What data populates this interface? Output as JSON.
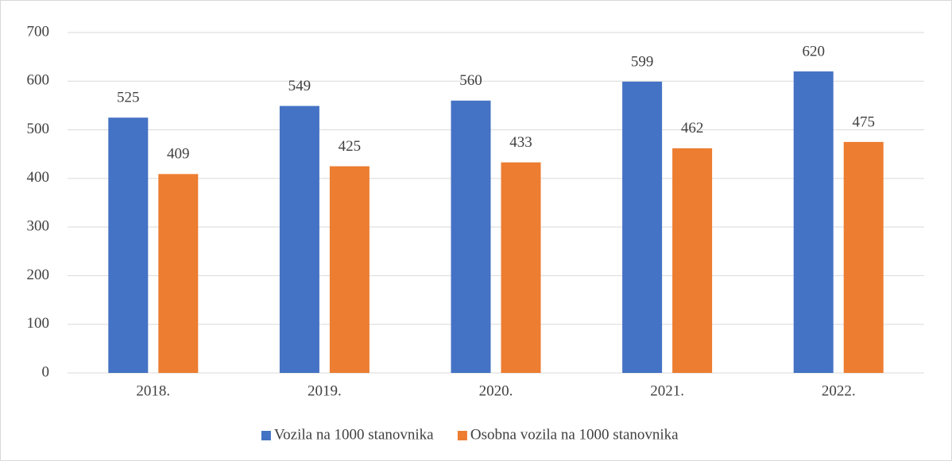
{
  "chart_data": {
    "type": "bar",
    "categories": [
      "2018.",
      "2019.",
      "2020.",
      "2021.",
      "2022."
    ],
    "series": [
      {
        "name": "Vozila na 1000 stanovnika",
        "color": "#4472c4",
        "values": [
          525,
          549,
          560,
          599,
          620
        ]
      },
      {
        "name": "Osobna vozila na 1000 stanovnika",
        "color": "#ed7d31",
        "values": [
          409,
          425,
          433,
          462,
          475
        ]
      }
    ],
    "ylim": [
      0,
      700
    ],
    "yticks": [
      0,
      100,
      200,
      300,
      400,
      500,
      600,
      700
    ],
    "grid": true,
    "legend": "bottom"
  }
}
